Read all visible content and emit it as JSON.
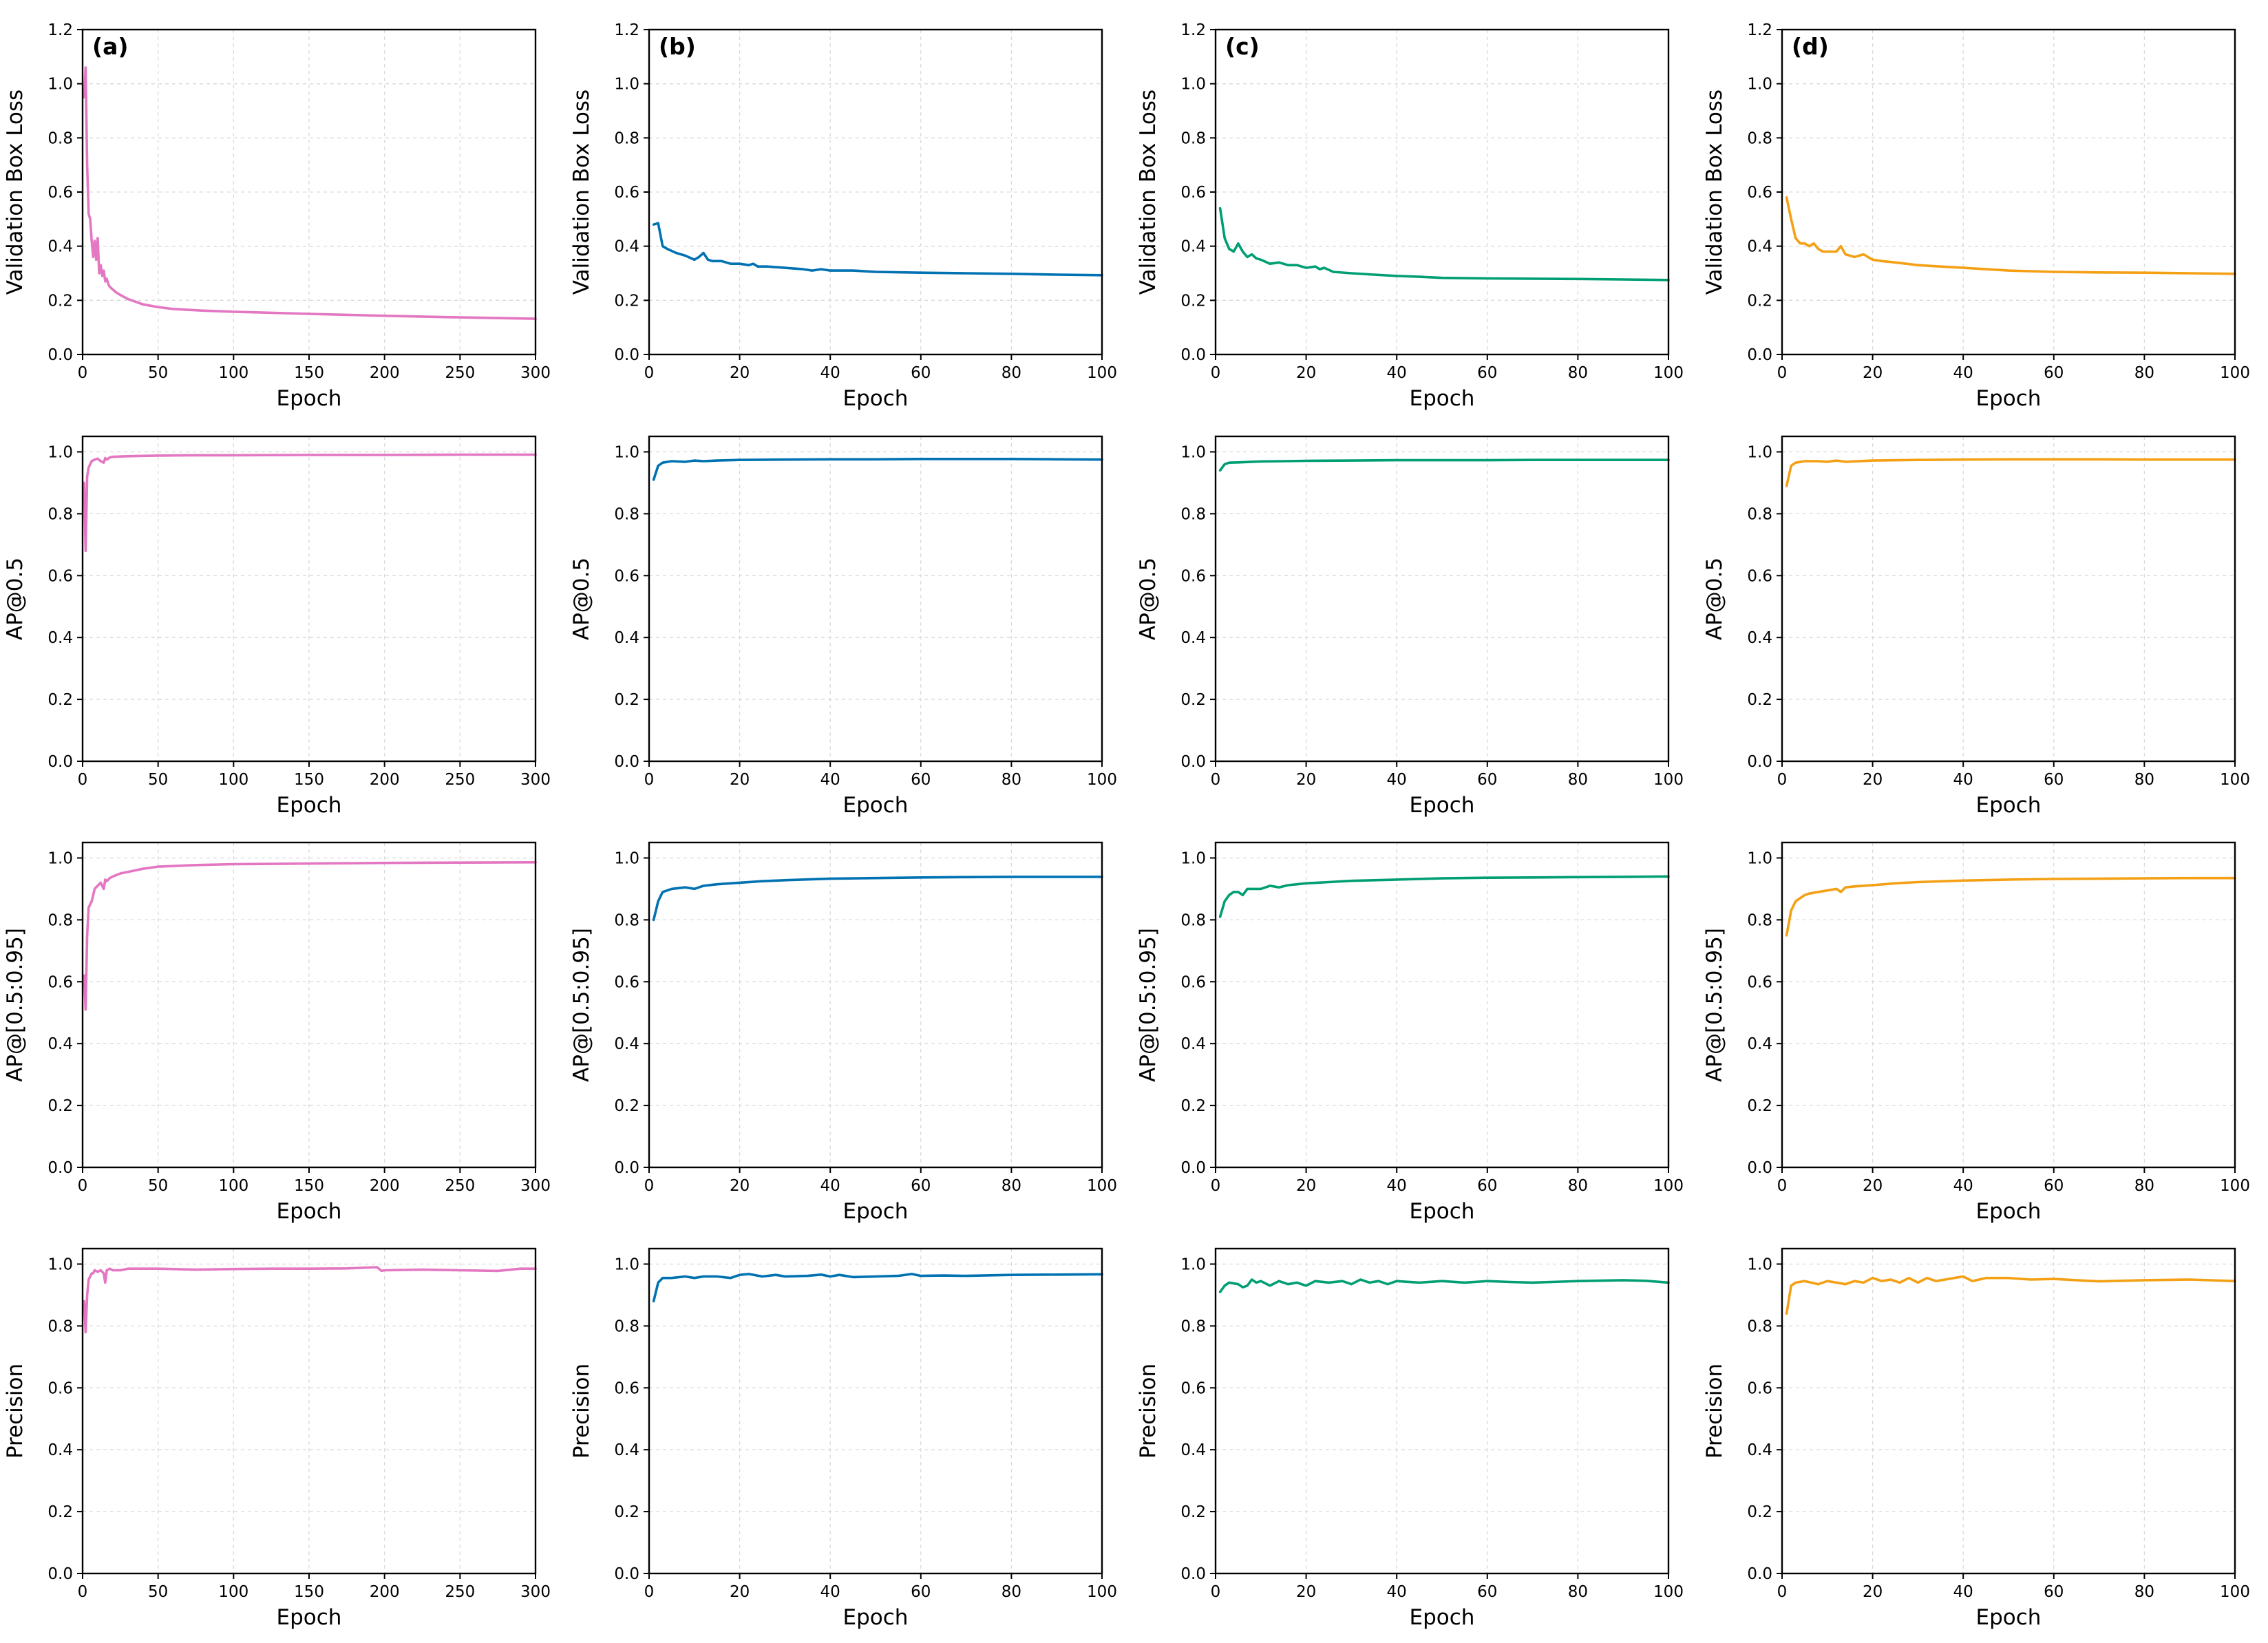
{
  "chart_data": [
    {
      "panel": "(a)",
      "row": 0,
      "col": 0,
      "type": "line",
      "xlabel": "Epoch",
      "ylabel": "Validation Box Loss",
      "xlim": [
        0,
        300
      ],
      "ylim": [
        0,
        1.2
      ],
      "xticks": [
        0,
        50,
        100,
        150,
        200,
        250,
        300
      ],
      "yticks": [
        "0.0",
        "0.2",
        "0.4",
        "0.6",
        "0.8",
        "1.0",
        "1.2"
      ],
      "color": "#e377c2",
      "grid": true,
      "x": [
        1,
        2,
        3,
        4,
        5,
        6,
        7,
        8,
        9,
        10,
        11,
        12,
        13,
        14,
        15,
        16,
        17,
        18,
        20,
        22,
        25,
        30,
        35,
        40,
        50,
        60,
        80,
        100,
        150,
        200,
        250,
        300
      ],
      "y": [
        0.95,
        1.06,
        0.7,
        0.52,
        0.5,
        0.42,
        0.36,
        0.42,
        0.35,
        0.43,
        0.3,
        0.33,
        0.29,
        0.31,
        0.27,
        0.28,
        0.26,
        0.25,
        0.24,
        0.23,
        0.22,
        0.205,
        0.195,
        0.185,
        0.175,
        0.168,
        0.162,
        0.158,
        0.15,
        0.143,
        0.137,
        0.132
      ]
    },
    {
      "panel": "(b)",
      "row": 0,
      "col": 1,
      "type": "line",
      "xlabel": "Epoch",
      "ylabel": "Validation Box Loss",
      "xlim": [
        0,
        100
      ],
      "ylim": [
        0,
        1.2
      ],
      "xticks": [
        0,
        20,
        40,
        60,
        80,
        100
      ],
      "yticks": [
        "0.0",
        "0.2",
        "0.4",
        "0.6",
        "0.8",
        "1.0",
        "1.2"
      ],
      "color": "#0072b2",
      "grid": true,
      "x": [
        1,
        2,
        3,
        4,
        6,
        8,
        10,
        11,
        12,
        13,
        14,
        16,
        18,
        20,
        22,
        23,
        24,
        26,
        30,
        34,
        36,
        38,
        40,
        45,
        50,
        60,
        70,
        80,
        90,
        100
      ],
      "y": [
        0.48,
        0.485,
        0.4,
        0.39,
        0.375,
        0.365,
        0.35,
        0.36,
        0.375,
        0.35,
        0.345,
        0.345,
        0.335,
        0.335,
        0.33,
        0.335,
        0.325,
        0.325,
        0.32,
        0.315,
        0.31,
        0.315,
        0.31,
        0.31,
        0.305,
        0.302,
        0.3,
        0.298,
        0.295,
        0.293
      ]
    },
    {
      "panel": "(c)",
      "row": 0,
      "col": 2,
      "type": "line",
      "xlabel": "Epoch",
      "ylabel": "Validation Box Loss",
      "xlim": [
        0,
        100
      ],
      "ylim": [
        0,
        1.2
      ],
      "xticks": [
        0,
        20,
        40,
        60,
        80,
        100
      ],
      "yticks": [
        "0.0",
        "0.2",
        "0.4",
        "0.6",
        "0.8",
        "1.0",
        "1.2"
      ],
      "color": "#009e73",
      "grid": true,
      "x": [
        1,
        2,
        3,
        4,
        5,
        6,
        7,
        8,
        9,
        10,
        12,
        14,
        16,
        18,
        20,
        22,
        23,
        24,
        26,
        30,
        35,
        40,
        45,
        50,
        60,
        70,
        80,
        90,
        100
      ],
      "y": [
        0.54,
        0.43,
        0.39,
        0.38,
        0.41,
        0.38,
        0.36,
        0.37,
        0.355,
        0.35,
        0.335,
        0.34,
        0.33,
        0.33,
        0.32,
        0.325,
        0.315,
        0.32,
        0.305,
        0.3,
        0.295,
        0.29,
        0.287,
        0.283,
        0.281,
        0.28,
        0.279,
        0.277,
        0.275
      ]
    },
    {
      "panel": "(d)",
      "row": 0,
      "col": 3,
      "type": "line",
      "xlabel": "Epoch",
      "ylabel": "Validation Box Loss",
      "xlim": [
        0,
        100
      ],
      "ylim": [
        0,
        1.2
      ],
      "xticks": [
        0,
        20,
        40,
        60,
        80,
        100
      ],
      "yticks": [
        "0.0",
        "0.2",
        "0.4",
        "0.6",
        "0.8",
        "1.0",
        "1.2"
      ],
      "color": "#f4a015",
      "grid": true,
      "x": [
        1,
        2,
        3,
        4,
        5,
        6,
        7,
        8,
        9,
        10,
        12,
        13,
        14,
        16,
        18,
        20,
        22,
        25,
        30,
        35,
        40,
        45,
        50,
        60,
        70,
        80,
        90,
        100
      ],
      "y": [
        0.58,
        0.5,
        0.43,
        0.41,
        0.41,
        0.4,
        0.41,
        0.39,
        0.38,
        0.38,
        0.38,
        0.4,
        0.37,
        0.36,
        0.37,
        0.35,
        0.345,
        0.34,
        0.33,
        0.325,
        0.32,
        0.315,
        0.31,
        0.305,
        0.303,
        0.302,
        0.3,
        0.298
      ]
    },
    {
      "row": 1,
      "col": 0,
      "type": "line",
      "xlabel": "Epoch",
      "ylabel": "AP@0.5",
      "xlim": [
        0,
        300
      ],
      "ylim": [
        0,
        1.05
      ],
      "xticks": [
        0,
        50,
        100,
        150,
        200,
        250,
        300
      ],
      "yticks": [
        "0.0",
        "0.2",
        "0.4",
        "0.6",
        "0.8",
        "1.0"
      ],
      "color": "#e377c2",
      "grid": true,
      "x": [
        1,
        2,
        3,
        4,
        5,
        6,
        8,
        10,
        12,
        14,
        15,
        16,
        18,
        20,
        25,
        30,
        40,
        50,
        75,
        100,
        150,
        200,
        250,
        300
      ],
      "y": [
        0.9,
        0.68,
        0.92,
        0.95,
        0.96,
        0.97,
        0.975,
        0.978,
        0.97,
        0.965,
        0.98,
        0.975,
        0.982,
        0.984,
        0.985,
        0.986,
        0.987,
        0.988,
        0.989,
        0.989,
        0.99,
        0.99,
        0.991,
        0.991
      ]
    },
    {
      "row": 1,
      "col": 1,
      "type": "line",
      "xlabel": "Epoch",
      "ylabel": "AP@0.5",
      "xlim": [
        0,
        100
      ],
      "ylim": [
        0,
        1.05
      ],
      "xticks": [
        0,
        20,
        40,
        60,
        80,
        100
      ],
      "yticks": [
        "0.0",
        "0.2",
        "0.4",
        "0.6",
        "0.8",
        "1.0"
      ],
      "color": "#0072b2",
      "grid": true,
      "x": [
        1,
        2,
        3,
        5,
        8,
        10,
        12,
        15,
        20,
        30,
        40,
        50,
        60,
        70,
        80,
        90,
        100
      ],
      "y": [
        0.91,
        0.955,
        0.965,
        0.97,
        0.968,
        0.972,
        0.97,
        0.972,
        0.974,
        0.975,
        0.976,
        0.976,
        0.977,
        0.977,
        0.977,
        0.976,
        0.975
      ]
    },
    {
      "row": 1,
      "col": 2,
      "type": "line",
      "xlabel": "Epoch",
      "ylabel": "AP@0.5",
      "xlim": [
        0,
        100
      ],
      "ylim": [
        0,
        1.05
      ],
      "xticks": [
        0,
        20,
        40,
        60,
        80,
        100
      ],
      "yticks": [
        "0.0",
        "0.2",
        "0.4",
        "0.6",
        "0.8",
        "1.0"
      ],
      "color": "#009e73",
      "grid": true,
      "x": [
        1,
        2,
        3,
        5,
        8,
        10,
        15,
        20,
        30,
        40,
        50,
        60,
        70,
        80,
        90,
        100
      ],
      "y": [
        0.94,
        0.96,
        0.965,
        0.966,
        0.968,
        0.969,
        0.97,
        0.971,
        0.972,
        0.973,
        0.973,
        0.973,
        0.974,
        0.974,
        0.974,
        0.974
      ]
    },
    {
      "row": 1,
      "col": 3,
      "type": "line",
      "xlabel": "Epoch",
      "ylabel": "AP@0.5",
      "xlim": [
        0,
        100
      ],
      "ylim": [
        0,
        1.05
      ],
      "xticks": [
        0,
        20,
        40,
        60,
        80,
        100
      ],
      "yticks": [
        "0.0",
        "0.2",
        "0.4",
        "0.6",
        "0.8",
        "1.0"
      ],
      "color": "#f4a015",
      "grid": true,
      "x": [
        1,
        2,
        3,
        5,
        8,
        10,
        12,
        14,
        20,
        30,
        40,
        50,
        60,
        70,
        80,
        90,
        100
      ],
      "y": [
        0.89,
        0.955,
        0.965,
        0.97,
        0.97,
        0.968,
        0.972,
        0.968,
        0.972,
        0.974,
        0.975,
        0.976,
        0.976,
        0.976,
        0.975,
        0.975,
        0.975
      ]
    },
    {
      "row": 2,
      "col": 0,
      "type": "line",
      "xlabel": "Epoch",
      "ylabel": "AP@[0.5:0.95]",
      "xlim": [
        0,
        300
      ],
      "ylim": [
        0,
        1.05
      ],
      "xticks": [
        0,
        50,
        100,
        150,
        200,
        250,
        300
      ],
      "yticks": [
        "0.0",
        "0.2",
        "0.4",
        "0.6",
        "0.8",
        "1.0"
      ],
      "color": "#e377c2",
      "grid": true,
      "x": [
        1,
        2,
        3,
        4,
        5,
        6,
        7,
        8,
        10,
        12,
        14,
        15,
        16,
        18,
        20,
        25,
        30,
        40,
        50,
        75,
        100,
        150,
        200,
        250,
        300
      ],
      "y": [
        0.62,
        0.51,
        0.75,
        0.84,
        0.85,
        0.86,
        0.88,
        0.9,
        0.91,
        0.92,
        0.9,
        0.93,
        0.925,
        0.935,
        0.94,
        0.95,
        0.955,
        0.965,
        0.972,
        0.977,
        0.98,
        0.982,
        0.984,
        0.985,
        0.986
      ]
    },
    {
      "row": 2,
      "col": 1,
      "type": "line",
      "xlabel": "Epoch",
      "ylabel": "AP@[0.5:0.95]",
      "xlim": [
        0,
        100
      ],
      "ylim": [
        0,
        1.05
      ],
      "xticks": [
        0,
        20,
        40,
        60,
        80,
        100
      ],
      "yticks": [
        "0.0",
        "0.2",
        "0.4",
        "0.6",
        "0.8",
        "1.0"
      ],
      "color": "#0072b2",
      "grid": true,
      "x": [
        1,
        2,
        3,
        5,
        8,
        10,
        12,
        15,
        20,
        25,
        30,
        40,
        50,
        60,
        70,
        80,
        90,
        100
      ],
      "y": [
        0.8,
        0.86,
        0.89,
        0.9,
        0.905,
        0.9,
        0.91,
        0.915,
        0.92,
        0.925,
        0.928,
        0.933,
        0.935,
        0.937,
        0.938,
        0.939,
        0.939,
        0.939
      ]
    },
    {
      "row": 2,
      "col": 2,
      "type": "line",
      "xlabel": "Epoch",
      "ylabel": "AP@[0.5:0.95]",
      "xlim": [
        0,
        100
      ],
      "ylim": [
        0,
        1.05
      ],
      "xticks": [
        0,
        20,
        40,
        60,
        80,
        100
      ],
      "yticks": [
        "0.0",
        "0.2",
        "0.4",
        "0.6",
        "0.8",
        "1.0"
      ],
      "color": "#009e73",
      "grid": true,
      "x": [
        1,
        2,
        3,
        4,
        5,
        6,
        7,
        8,
        10,
        12,
        14,
        16,
        18,
        20,
        25,
        30,
        40,
        50,
        60,
        70,
        80,
        90,
        100
      ],
      "y": [
        0.81,
        0.86,
        0.88,
        0.89,
        0.89,
        0.88,
        0.9,
        0.9,
        0.9,
        0.91,
        0.905,
        0.912,
        0.915,
        0.918,
        0.922,
        0.926,
        0.93,
        0.934,
        0.936,
        0.937,
        0.938,
        0.939,
        0.94
      ]
    },
    {
      "row": 2,
      "col": 3,
      "type": "line",
      "xlabel": "Epoch",
      "ylabel": "AP@[0.5:0.95]",
      "xlim": [
        0,
        100
      ],
      "ylim": [
        0,
        1.05
      ],
      "xticks": [
        0,
        20,
        40,
        60,
        80,
        100
      ],
      "yticks": [
        "0.0",
        "0.2",
        "0.4",
        "0.6",
        "0.8",
        "1.0"
      ],
      "color": "#f4a015",
      "grid": true,
      "x": [
        1,
        2,
        3,
        4,
        5,
        6,
        8,
        10,
        12,
        13,
        14,
        16,
        20,
        25,
        30,
        40,
        50,
        60,
        70,
        80,
        90,
        100
      ],
      "y": [
        0.75,
        0.83,
        0.86,
        0.87,
        0.88,
        0.885,
        0.89,
        0.895,
        0.9,
        0.89,
        0.905,
        0.908,
        0.912,
        0.918,
        0.922,
        0.927,
        0.93,
        0.932,
        0.933,
        0.934,
        0.935,
        0.935
      ]
    },
    {
      "row": 3,
      "col": 0,
      "type": "line",
      "xlabel": "Epoch",
      "ylabel": "Precision",
      "xlim": [
        0,
        300
      ],
      "ylim": [
        0,
        1.05
      ],
      "xticks": [
        0,
        50,
        100,
        150,
        200,
        250,
        300
      ],
      "yticks": [
        "0.0",
        "0.2",
        "0.4",
        "0.6",
        "0.8",
        "1.0"
      ],
      "color": "#e377c2",
      "grid": true,
      "x": [
        1,
        2,
        3,
        4,
        5,
        6,
        7,
        8,
        10,
        12,
        14,
        15,
        16,
        18,
        20,
        25,
        30,
        40,
        50,
        75,
        100,
        125,
        150,
        175,
        195,
        198,
        200,
        225,
        250,
        275,
        290,
        300
      ],
      "y": [
        0.88,
        0.78,
        0.9,
        0.95,
        0.96,
        0.97,
        0.97,
        0.98,
        0.975,
        0.98,
        0.97,
        0.94,
        0.98,
        0.985,
        0.98,
        0.98,
        0.985,
        0.985,
        0.985,
        0.982,
        0.984,
        0.985,
        0.985,
        0.986,
        0.99,
        0.978,
        0.98,
        0.982,
        0.98,
        0.978,
        0.985,
        0.985
      ]
    },
    {
      "row": 3,
      "col": 1,
      "type": "line",
      "xlabel": "Epoch",
      "ylabel": "Precision",
      "xlim": [
        0,
        100
      ],
      "ylim": [
        0,
        1.05
      ],
      "xticks": [
        0,
        20,
        40,
        60,
        80,
        100
      ],
      "yticks": [
        "0.0",
        "0.2",
        "0.4",
        "0.6",
        "0.8",
        "1.0"
      ],
      "color": "#0072b2",
      "grid": true,
      "x": [
        1,
        2,
        3,
        5,
        8,
        10,
        12,
        15,
        18,
        20,
        22,
        25,
        28,
        30,
        35,
        38,
        40,
        42,
        45,
        50,
        55,
        58,
        60,
        65,
        70,
        80,
        90,
        100
      ],
      "y": [
        0.88,
        0.94,
        0.955,
        0.955,
        0.96,
        0.955,
        0.96,
        0.96,
        0.955,
        0.965,
        0.968,
        0.96,
        0.965,
        0.96,
        0.962,
        0.966,
        0.96,
        0.965,
        0.958,
        0.96,
        0.962,
        0.968,
        0.962,
        0.963,
        0.962,
        0.965,
        0.966,
        0.967
      ]
    },
    {
      "row": 3,
      "col": 2,
      "type": "line",
      "xlabel": "Epoch",
      "ylabel": "Precision",
      "xlim": [
        0,
        100
      ],
      "ylim": [
        0,
        1.05
      ],
      "xticks": [
        0,
        20,
        40,
        60,
        80,
        100
      ],
      "yticks": [
        "0.0",
        "0.2",
        "0.4",
        "0.6",
        "0.8",
        "1.0"
      ],
      "color": "#009e73",
      "grid": true,
      "x": [
        1,
        2,
        3,
        5,
        6,
        7,
        8,
        9,
        10,
        12,
        14,
        16,
        18,
        20,
        22,
        25,
        28,
        30,
        32,
        34,
        36,
        38,
        40,
        45,
        50,
        55,
        60,
        65,
        70,
        80,
        90,
        95,
        100
      ],
      "y": [
        0.91,
        0.93,
        0.94,
        0.935,
        0.925,
        0.93,
        0.95,
        0.94,
        0.945,
        0.93,
        0.945,
        0.935,
        0.94,
        0.93,
        0.945,
        0.94,
        0.945,
        0.935,
        0.95,
        0.94,
        0.945,
        0.935,
        0.945,
        0.94,
        0.945,
        0.94,
        0.945,
        0.942,
        0.94,
        0.945,
        0.948,
        0.946,
        0.94
      ]
    },
    {
      "row": 3,
      "col": 3,
      "type": "line",
      "xlabel": "Epoch",
      "ylabel": "Precision",
      "xlim": [
        0,
        100
      ],
      "ylim": [
        0,
        1.05
      ],
      "xticks": [
        0,
        20,
        40,
        60,
        80,
        100
      ],
      "yticks": [
        "0.0",
        "0.2",
        "0.4",
        "0.6",
        "0.8",
        "1.0"
      ],
      "color": "#f4a015",
      "grid": true,
      "x": [
        1,
        2,
        3,
        5,
        8,
        10,
        12,
        14,
        16,
        18,
        20,
        22,
        24,
        26,
        28,
        30,
        32,
        34,
        36,
        38,
        40,
        42,
        45,
        50,
        55,
        60,
        65,
        70,
        80,
        90,
        100
      ],
      "y": [
        0.84,
        0.93,
        0.94,
        0.945,
        0.935,
        0.945,
        0.94,
        0.935,
        0.945,
        0.94,
        0.955,
        0.945,
        0.95,
        0.94,
        0.955,
        0.94,
        0.955,
        0.945,
        0.95,
        0.955,
        0.96,
        0.945,
        0.955,
        0.955,
        0.95,
        0.952,
        0.948,
        0.944,
        0.948,
        0.95,
        0.945
      ]
    }
  ]
}
